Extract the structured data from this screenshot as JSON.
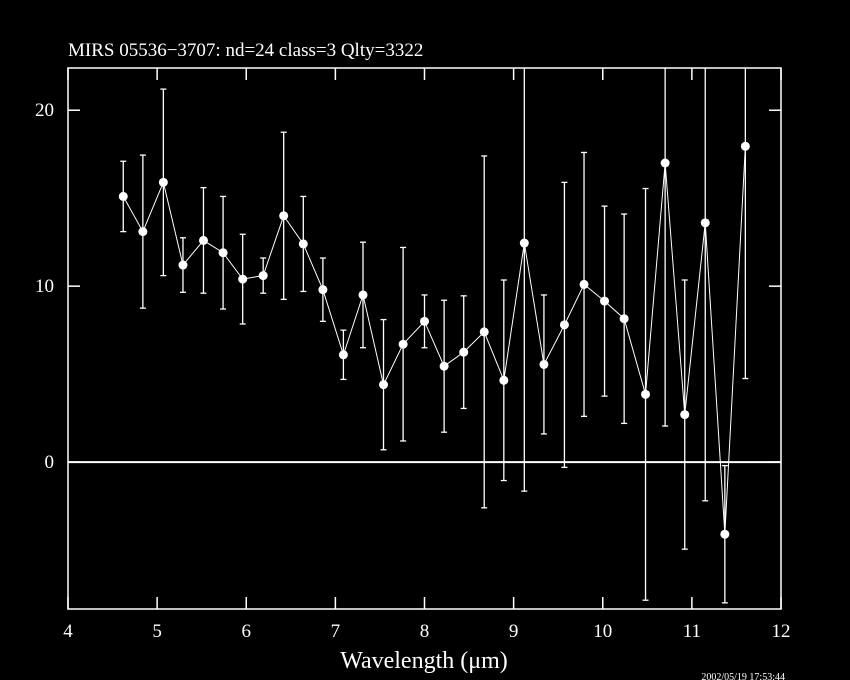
{
  "chart_data": {
    "type": "errorbar",
    "title": "MIRS 05536−3707:    nd=24    class=3    Qlty=3322",
    "x_label": "Wavelength (μm)",
    "timestamp": "2002/05/19 17:53:44",
    "color": "#ffffff",
    "xlim": [
      4,
      12
    ],
    "xticks": [
      4,
      5,
      6,
      7,
      8,
      9,
      10,
      11,
      12
    ],
    "ylim": [
      -8.35,
      22.4
    ],
    "yticks": [
      0,
      10,
      20
    ],
    "hline": 0,
    "series": [
      {
        "x": [
          4.62,
          4.84,
          5.07,
          5.29,
          5.52,
          5.74,
          5.96,
          6.19,
          6.42,
          6.64,
          6.86,
          7.09,
          7.31,
          7.54,
          7.76,
          8.0,
          8.22,
          8.44,
          8.67,
          8.89,
          9.12,
          9.34,
          9.57,
          9.79,
          10.02,
          10.24,
          10.48,
          10.7,
          10.92,
          11.15,
          11.37,
          11.6
        ],
        "values": [
          15.1,
          13.1,
          15.9,
          11.2,
          12.6,
          11.9,
          10.4,
          10.6,
          14.0,
          12.4,
          9.8,
          6.1,
          9.5,
          4.4,
          6.7,
          8.0,
          5.45,
          6.25,
          7.4,
          4.65,
          12.45,
          5.55,
          7.8,
          10.1,
          9.15,
          8.15,
          3.85,
          17.0,
          2.7,
          13.6,
          -4.1,
          17.95
        ],
        "errors": [
          2.0,
          4.35,
          5.3,
          1.55,
          3.0,
          3.2,
          2.55,
          1.0,
          4.75,
          2.7,
          1.8,
          1.4,
          3.0,
          3.7,
          5.5,
          1.5,
          3.75,
          3.2,
          10.0,
          5.7,
          14.1,
          3.95,
          8.1,
          7.5,
          5.4,
          5.95,
          11.7,
          14.95,
          7.65,
          15.8,
          3.9,
          13.2
        ]
      }
    ]
  }
}
